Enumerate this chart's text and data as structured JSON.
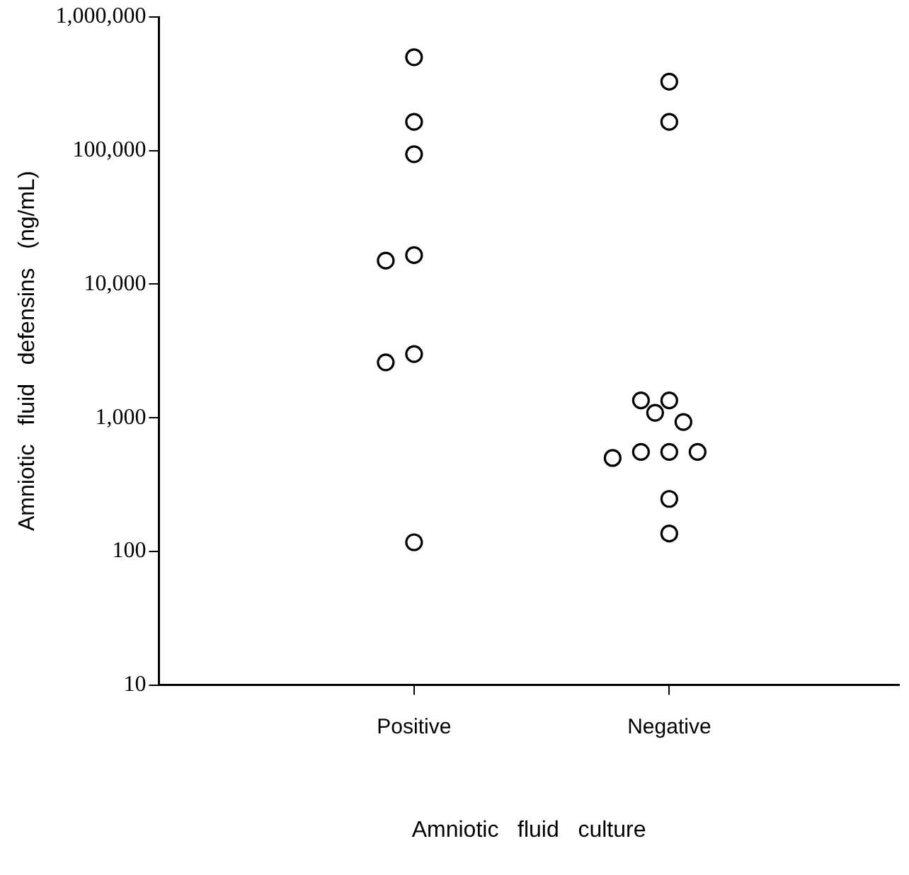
{
  "chart_data": {
    "type": "scatter",
    "categories": [
      "Positive",
      "Negative"
    ],
    "xlabel": "Amniotic fluid culture",
    "ylabel": "Amniotic fluid defensins (ng/mL)",
    "log": "y",
    "ylim": [
      10,
      1000000
    ],
    "yticks": [
      10,
      100,
      {
        "value": 1000,
        "label": "1,000"
      },
      {
        "value": 10000,
        "label": "10,000"
      },
      {
        "value": 100000,
        "label": "100,000"
      },
      {
        "value": 1000000,
        "label": "1,000,000"
      }
    ],
    "grid": false,
    "legend": false,
    "marker": "circle",
    "series": [
      {
        "color": "#000000",
        "x": [
          "Positive",
          "Positive",
          "Positive",
          "Positive",
          "Positive",
          "Positive",
          "Positive",
          "Positive"
        ],
        "values": [
          500000,
          164000,
          94000,
          16500,
          15000,
          3000,
          2600,
          117
        ]
      },
      {
        "color": "#000000",
        "x": [
          "Negative",
          "Negative",
          "Negative",
          "Negative",
          "Negative",
          "Negative",
          "Negative",
          "Negative",
          "Negative",
          "Negative",
          "Negative",
          "Negative"
        ],
        "values": [
          328000,
          164000,
          1350,
          1350,
          1090,
          930,
          555,
          555,
          555,
          500,
          247,
          136
        ]
      }
    ]
  }
}
